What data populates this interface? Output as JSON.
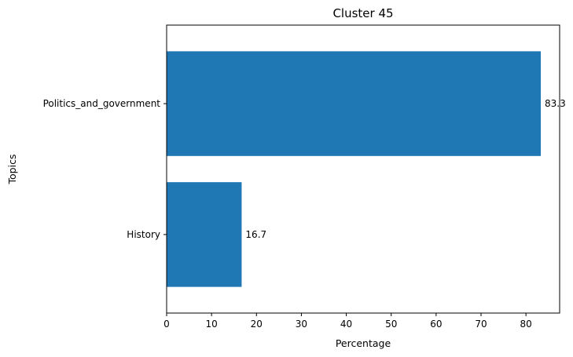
{
  "chart_data": {
    "type": "bar",
    "orientation": "horizontal",
    "title": "Cluster 45",
    "xlabel": "Percentage",
    "ylabel": "Topics",
    "categories": [
      "History",
      "Politics_and_government"
    ],
    "values": [
      16.7,
      83.3
    ],
    "data_labels": [
      "16.7",
      "83.3"
    ],
    "xlim": [
      0,
      87.5
    ],
    "xticks": [
      0,
      10,
      20,
      30,
      40,
      50,
      60,
      70,
      80
    ],
    "xtick_labels": [
      "0",
      "10",
      "20",
      "30",
      "40",
      "50",
      "60",
      "70",
      "80"
    ],
    "grid": false,
    "bar_color": "#1f77b4"
  }
}
